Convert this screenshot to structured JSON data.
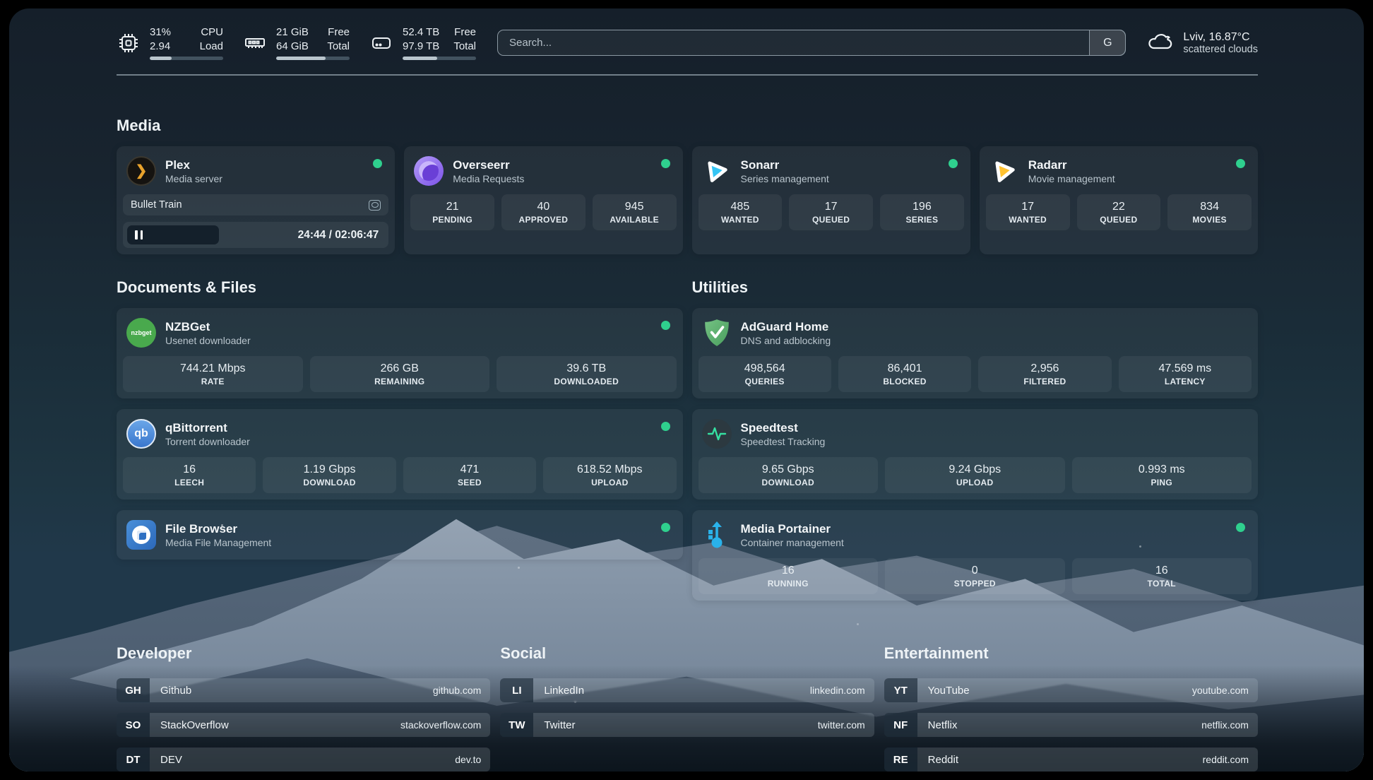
{
  "header": {
    "cpu": {
      "v1": "31%",
      "v2": "2.94",
      "l1": "CPU",
      "l2": "Load",
      "progress": 30
    },
    "mem": {
      "v1": "21 GiB",
      "v2": "64 GiB",
      "l1": "Free",
      "l2": "Total",
      "progress": 67
    },
    "disk": {
      "v1": "52.4 TB",
      "v2": "97.9 TB",
      "l1": "Free",
      "l2": "Total",
      "progress": 47
    },
    "search": {
      "placeholder": "Search...",
      "button_label": "G"
    },
    "weather": {
      "location": "Lviv, 16.87°C",
      "condition": "scattered clouds"
    }
  },
  "media": {
    "title": "Media",
    "plex": {
      "name": "Plex",
      "subtitle": "Media server",
      "now_playing": "Bullet Train",
      "time": "24:44 / 02:06:47"
    },
    "overseerr": {
      "name": "Overseerr",
      "subtitle": "Media Requests",
      "stats": [
        {
          "value": "21",
          "label": "PENDING"
        },
        {
          "value": "40",
          "label": "APPROVED"
        },
        {
          "value": "945",
          "label": "AVAILABLE"
        }
      ]
    },
    "sonarr": {
      "name": "Sonarr",
      "subtitle": "Series management",
      "stats": [
        {
          "value": "485",
          "label": "WANTED"
        },
        {
          "value": "17",
          "label": "QUEUED"
        },
        {
          "value": "196",
          "label": "SERIES"
        }
      ]
    },
    "radarr": {
      "name": "Radarr",
      "subtitle": "Movie management",
      "stats": [
        {
          "value": "17",
          "label": "WANTED"
        },
        {
          "value": "22",
          "label": "QUEUED"
        },
        {
          "value": "834",
          "label": "MOVIES"
        }
      ]
    }
  },
  "documents": {
    "title": "Documents & Files",
    "nzbget": {
      "name": "NZBGet",
      "subtitle": "Usenet downloader",
      "icon_text": "nzbget",
      "stats": [
        {
          "value": "744.21 Mbps",
          "label": "RATE"
        },
        {
          "value": "266 GB",
          "label": "REMAINING"
        },
        {
          "value": "39.6 TB",
          "label": "DOWNLOADED"
        }
      ]
    },
    "qbittorrent": {
      "name": "qBittorrent",
      "subtitle": "Torrent downloader",
      "icon_text": "qb",
      "stats": [
        {
          "value": "16",
          "label": "LEECH"
        },
        {
          "value": "1.19 Gbps",
          "label": "DOWNLOAD"
        },
        {
          "value": "471",
          "label": "SEED"
        },
        {
          "value": "618.52 Mbps",
          "label": "UPLOAD"
        }
      ]
    },
    "filebrowser": {
      "name": "File Browser",
      "subtitle": "Media File Management"
    }
  },
  "utilities": {
    "title": "Utilities",
    "adguard": {
      "name": "AdGuard Home",
      "subtitle": "DNS and adblocking",
      "stats": [
        {
          "value": "498,564",
          "label": "QUERIES"
        },
        {
          "value": "86,401",
          "label": "BLOCKED"
        },
        {
          "value": "2,956",
          "label": "FILTERED"
        },
        {
          "value": "47.569 ms",
          "label": "LATENCY"
        }
      ]
    },
    "speedtest": {
      "name": "Speedtest",
      "subtitle": "Speedtest Tracking",
      "stats": [
        {
          "value": "9.65 Gbps",
          "label": "DOWNLOAD"
        },
        {
          "value": "9.24 Gbps",
          "label": "UPLOAD"
        },
        {
          "value": "0.993 ms",
          "label": "PING"
        }
      ]
    },
    "portainer": {
      "name": "Media Portainer",
      "subtitle": "Container management",
      "stats": [
        {
          "value": "16",
          "label": "RUNNING"
        },
        {
          "value": "0",
          "label": "STOPPED"
        },
        {
          "value": "16",
          "label": "TOTAL"
        }
      ]
    }
  },
  "bookmarks": {
    "developer": {
      "title": "Developer",
      "items": [
        {
          "abbr": "GH",
          "label": "Github",
          "url": "github.com"
        },
        {
          "abbr": "SO",
          "label": "StackOverflow",
          "url": "stackoverflow.com"
        },
        {
          "abbr": "DT",
          "label": "DEV",
          "url": "dev.to"
        }
      ]
    },
    "social": {
      "title": "Social",
      "items": [
        {
          "abbr": "LI",
          "label": "LinkedIn",
          "url": "linkedin.com"
        },
        {
          "abbr": "TW",
          "label": "Twitter",
          "url": "twitter.com"
        }
      ]
    },
    "entertainment": {
      "title": "Entertainment",
      "items": [
        {
          "abbr": "YT",
          "label": "YouTube",
          "url": "youtube.com"
        },
        {
          "abbr": "NF",
          "label": "Netflix",
          "url": "netflix.com"
        },
        {
          "abbr": "RE",
          "label": "Reddit",
          "url": "reddit.com"
        }
      ]
    }
  },
  "colors": {
    "status_online": "#2fd08e",
    "accent_green": "#35e0a1"
  }
}
